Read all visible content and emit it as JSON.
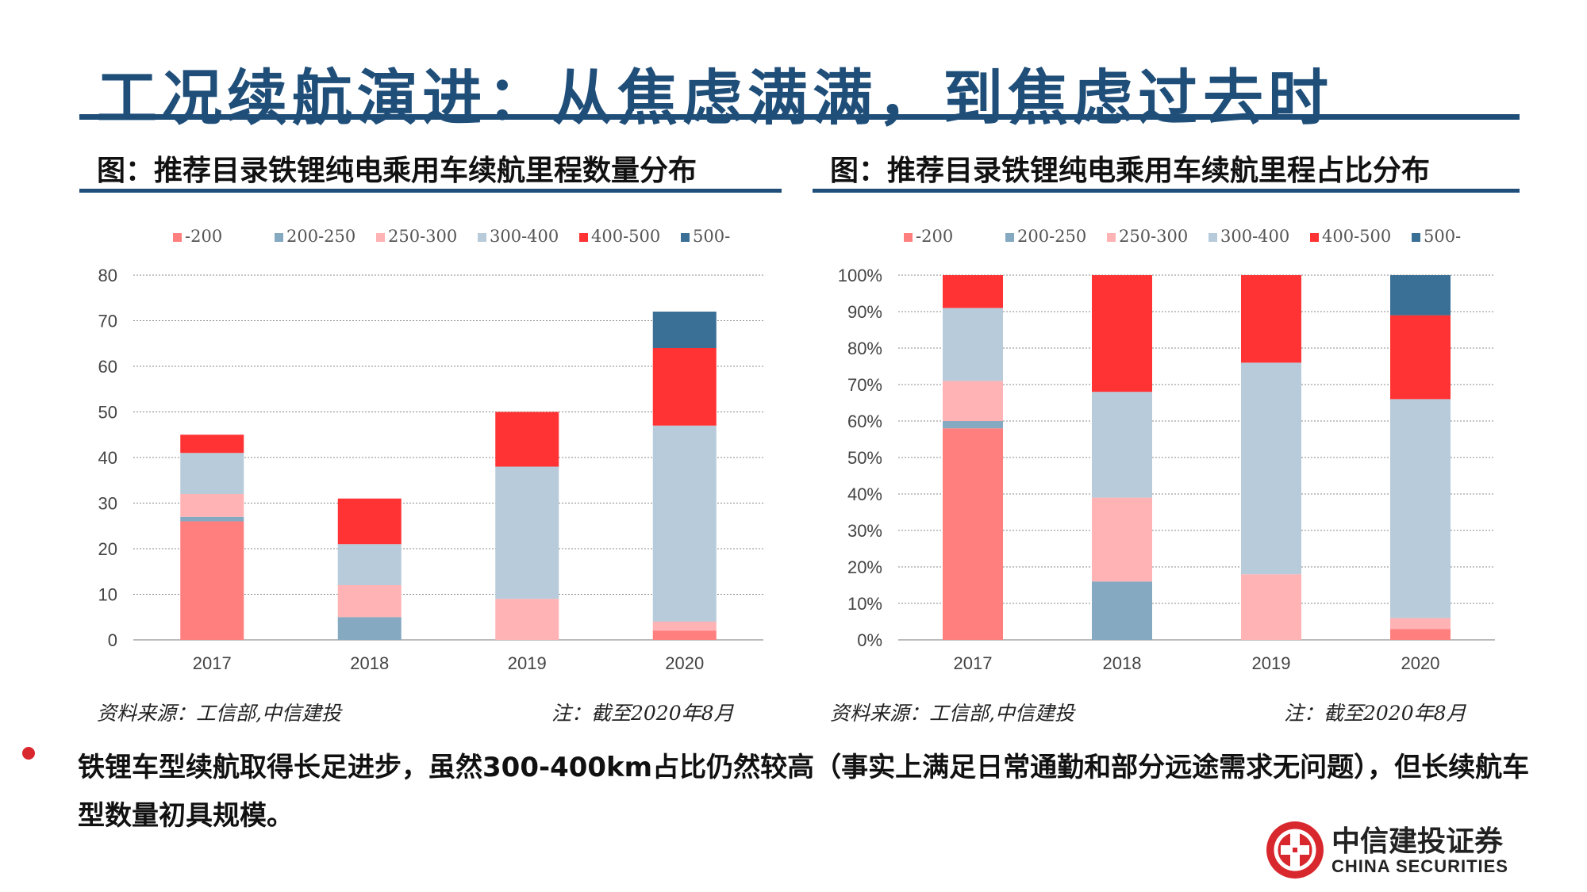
{
  "slide": {
    "title": "工况续航演进：从焦虑满满，到焦虑过去时"
  },
  "panels": [
    {
      "title": "图：推荐目录铁锂纯电乘用车续航里程数量分布",
      "source": "资料来源：工信部,中信建投",
      "note": "注：截至2020年8月"
    },
    {
      "title": "图：推荐目录铁锂纯电乘用车续航里程占比分布",
      "source": "资料来源：工信部,中信建投",
      "note": "注：截至2020年8月"
    }
  ],
  "chart_data": [
    {
      "type": "bar",
      "stacked": true,
      "title": "图：推荐目录铁锂纯电乘用车续航里程数量分布",
      "categories": [
        "2017",
        "2018",
        "2019",
        "2020"
      ],
      "series": [
        {
          "name": "-200",
          "color": "#ff7f7f",
          "values": [
            26,
            0,
            0,
            2
          ]
        },
        {
          "name": "200-250",
          "color": "#84a9c0",
          "values": [
            1,
            5,
            0,
            0
          ]
        },
        {
          "name": "250-300",
          "color": "#ffb3b5",
          "values": [
            5,
            7,
            9,
            2
          ]
        },
        {
          "name": "300-400",
          "color": "#b7cbda",
          "values": [
            9,
            9,
            29,
            43
          ]
        },
        {
          "name": "400-500",
          "color": "#ff3333",
          "values": [
            4,
            10,
            12,
            17
          ]
        },
        {
          "name": "500-",
          "color": "#3a6f96",
          "values": [
            0,
            0,
            0,
            8
          ]
        }
      ],
      "ylim": [
        0,
        80
      ],
      "yticks": [
        "0",
        "10",
        "20",
        "30",
        "40",
        "50",
        "60",
        "70",
        "80"
      ],
      "grid": true,
      "legend": "top"
    },
    {
      "type": "bar",
      "stacked": true,
      "title": "图：推荐目录铁锂纯电乘用车续航里程占比分布",
      "categories": [
        "2017",
        "2018",
        "2019",
        "2020"
      ],
      "series": [
        {
          "name": "-200",
          "color": "#ff7f7f",
          "values": [
            58,
            0,
            0,
            3
          ]
        },
        {
          "name": "200-250",
          "color": "#84a9c0",
          "values": [
            2,
            16,
            0,
            0
          ]
        },
        {
          "name": "250-300",
          "color": "#ffb3b5",
          "values": [
            11,
            23,
            18,
            3
          ]
        },
        {
          "name": "300-400",
          "color": "#b7cbda",
          "values": [
            20,
            29,
            58,
            60
          ]
        },
        {
          "name": "400-500",
          "color": "#ff3333",
          "values": [
            9,
            32,
            24,
            23
          ]
        },
        {
          "name": "500-",
          "color": "#3a6f96",
          "values": [
            0,
            0,
            0,
            11
          ]
        }
      ],
      "ylim": [
        0,
        100
      ],
      "yticks": [
        "0%",
        "10%",
        "20%",
        "30%",
        "40%",
        "50%",
        "60%",
        "70%",
        "80%",
        "90%",
        "100%"
      ],
      "grid": true,
      "legend": "top"
    }
  ],
  "bullet": {
    "text": "铁锂车型续航取得长足进步，虽然300-400km占比仍然较高（事实上满足日常通勤和部分远途需求无问题），但长续航车型数量初具规模。"
  },
  "logo": {
    "cn": "中信建投证券",
    "en": "CHINA SECURITIES",
    "color": "#d9272e"
  }
}
